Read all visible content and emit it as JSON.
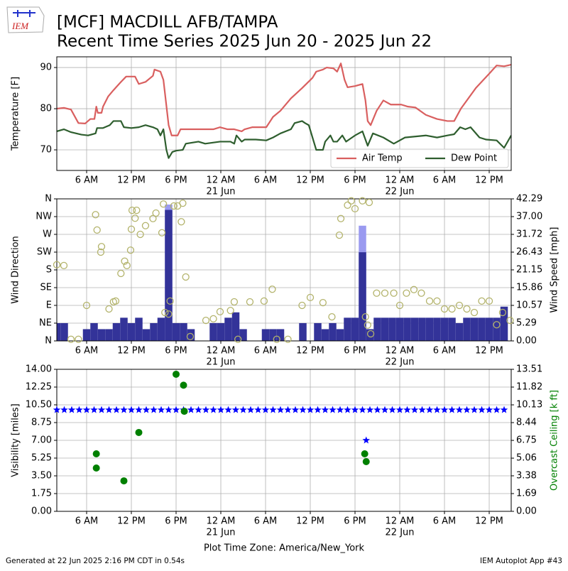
{
  "header": {
    "logo": "IEM",
    "title": "[MCF] MACDILL AFB/TAMPA",
    "subtitle": "Recent Time Series 2025 Jun 20 - 2025 Jun 22"
  },
  "footer": {
    "left": "Generated at 22 Jun 2025 2:16 PM CDT in 0.54s",
    "right": "IEM Autoplot App #43"
  },
  "chart_data": [
    {
      "type": "line",
      "ylabel": "Temperature [F]",
      "grid": true,
      "legend": "lower right",
      "xlim": [
        2,
        62.95
      ],
      "xticks": [
        {
          "value": 6,
          "label": "6 AM"
        },
        {
          "value": 12,
          "label": "12 PM"
        },
        {
          "value": 18,
          "label": "6 PM"
        },
        {
          "value": 24,
          "label": "12 AM",
          "sublabel": "21 Jun"
        },
        {
          "value": 30,
          "label": "6 AM"
        },
        {
          "value": 36,
          "label": "12 PM"
        },
        {
          "value": 42,
          "label": "6 PM"
        },
        {
          "value": 48,
          "label": "12 AM",
          "sublabel": "22 Jun"
        },
        {
          "value": 54,
          "label": "6 AM"
        },
        {
          "value": 60,
          "label": "12 PM"
        }
      ],
      "ylim": [
        65,
        92.6
      ],
      "yticks": [
        70,
        80,
        90
      ],
      "series": [
        {
          "name": "Air Temp",
          "color": "#d95f5f",
          "x": [
            2,
            2.95,
            3.9,
            4.9,
            5.8,
            6.5,
            7.05,
            7.3,
            7.5,
            8,
            8.2,
            8.9,
            9.6,
            10.6,
            11.3,
            12.5,
            13,
            13.9,
            14.9,
            15.1,
            15.9,
            16.3,
            17,
            17.4,
            18.2,
            18.6,
            19.6,
            21,
            23,
            23.9,
            24.9,
            25.8,
            26.8,
            27.2,
            28.2,
            29.6,
            30.1,
            31,
            32,
            33.4,
            34.9,
            36.3,
            36.8,
            37.7,
            38.2,
            39.1,
            39.6,
            40.1,
            40.6,
            41,
            42,
            43,
            43.4,
            43.7,
            44.1,
            44.9,
            45.8,
            46.8,
            48.2,
            49.1,
            50.1,
            51.5,
            53,
            54.4,
            55.3,
            56.2,
            58.2,
            60,
            61,
            62,
            62.95
          ],
          "values": [
            80,
            80.2,
            79.8,
            76.5,
            76.4,
            77.5,
            77.5,
            80.5,
            79,
            79,
            80.5,
            83,
            84.5,
            86.5,
            87.8,
            87.8,
            86,
            86.5,
            88,
            89.5,
            89,
            87,
            76,
            73.5,
            73.5,
            75,
            75,
            75,
            75,
            75.5,
            75,
            75,
            74.5,
            75,
            75.5,
            75.5,
            75.5,
            78,
            79.5,
            82.5,
            85,
            87.5,
            89,
            89.5,
            90,
            89.8,
            89,
            91,
            87,
            85.2,
            85.5,
            86,
            82,
            77,
            76,
            79.5,
            82,
            81,
            81,
            80.5,
            80.3,
            78.5,
            77.5,
            77,
            77,
            80,
            85,
            88.5,
            90.5,
            90.3,
            90.7
          ]
        },
        {
          "name": "Dew Point",
          "color": "#2e5e2e",
          "x": [
            2,
            2.95,
            3.9,
            5.3,
            6.2,
            7.2,
            7.4,
            8.2,
            9.1,
            9.6,
            10.6,
            11,
            12,
            13,
            13.9,
            14.9,
            15.5,
            15.9,
            16.3,
            16.7,
            17,
            17.5,
            18,
            18.9,
            19.3,
            21,
            21.9,
            23.9,
            25.3,
            25.8,
            26.1,
            26.8,
            27.2,
            28.7,
            30.1,
            31,
            32,
            33.4,
            33.9,
            34.9,
            35.3,
            35.8,
            36.8,
            37.7,
            38,
            38.7,
            39.1,
            39.6,
            40.3,
            40.8,
            41.2,
            42,
            43,
            43.2,
            43.7,
            44.4,
            45.8,
            47.2,
            48.7,
            51.5,
            53,
            54.4,
            55.3,
            56.1,
            56.8,
            57.5,
            58.7,
            59.6,
            61,
            62,
            62.95
          ],
          "values": [
            74.5,
            75,
            74.3,
            73.7,
            73.5,
            74,
            75.3,
            75.3,
            76,
            77,
            77,
            75.5,
            75.3,
            75.5,
            76,
            75.5,
            75,
            73.5,
            75,
            70,
            68,
            69.5,
            69.8,
            70,
            71.5,
            72,
            71.5,
            72,
            72,
            71.5,
            73.5,
            72,
            72.5,
            72.5,
            72.3,
            73,
            74,
            75,
            76.5,
            77,
            76.5,
            76,
            70,
            70,
            72,
            73.5,
            72,
            72,
            73.5,
            72,
            72.5,
            73.5,
            74.5,
            73.5,
            71,
            74,
            73,
            71.5,
            73,
            73.5,
            73,
            73.5,
            73.8,
            75.5,
            75,
            75.5,
            73,
            72.5,
            72.3,
            70.5,
            73.5
          ]
        }
      ]
    },
    {
      "type": "bar",
      "ylabel": "Wind Direction",
      "y2label": "Wind Speed [mph]",
      "grid": true,
      "xlim": [
        2,
        62.95
      ],
      "xticks": [
        {
          "value": 6,
          "label": "6 AM"
        },
        {
          "value": 12,
          "label": "12 PM"
        },
        {
          "value": 18,
          "label": "6 PM"
        },
        {
          "value": 24,
          "label": "12 AM",
          "sublabel": "21 Jun"
        },
        {
          "value": 30,
          "label": "6 AM"
        },
        {
          "value": 36,
          "label": "12 PM"
        },
        {
          "value": 42,
          "label": "6 PM"
        },
        {
          "value": 48,
          "label": "12 AM",
          "sublabel": "22 Jun"
        },
        {
          "value": 54,
          "label": "6 AM"
        },
        {
          "value": 60,
          "label": "12 PM"
        }
      ],
      "ylim": [
        0,
        360
      ],
      "yticks": [
        {
          "value": 0,
          "label": "N"
        },
        {
          "value": 45,
          "label": "NE"
        },
        {
          "value": 90,
          "label": "E"
        },
        {
          "value": 135,
          "label": "SE"
        },
        {
          "value": 180,
          "label": "S"
        },
        {
          "value": 225,
          "label": "SW"
        },
        {
          "value": 270,
          "label": "W"
        },
        {
          "value": 315,
          "label": "NW"
        },
        {
          "value": 360,
          "label": "N"
        }
      ],
      "y2lim": [
        0,
        42.29
      ],
      "y2ticks": [
        {
          "value": 0,
          "label": "0.00"
        },
        5.29,
        10.57,
        15.86,
        21.15,
        26.43,
        31.72,
        {
          "value": 37,
          "label": "37.00"
        },
        42.29
      ],
      "series": [
        {
          "type": "bar",
          "axis": "y2",
          "color": "#9a9af0",
          "x": [
            17,
            43
          ],
          "values": [
            40.6,
            34.3
          ]
        },
        {
          "type": "bar",
          "axis": "y2",
          "color": "#333399",
          "x": [
            2,
            3,
            4,
            5,
            6,
            7,
            8,
            9,
            10,
            11,
            12,
            13,
            14,
            15,
            16,
            17,
            18,
            19,
            20,
            21,
            22,
            23,
            24,
            25,
            26,
            27,
            28,
            29,
            30,
            31,
            32,
            33,
            34,
            35,
            36,
            37,
            38,
            39,
            40,
            41,
            42,
            43,
            44,
            45,
            46,
            47,
            48,
            49,
            50,
            51,
            52,
            53,
            54,
            55,
            56,
            57,
            58,
            59,
            60,
            61,
            62
          ],
          "values": [
            5.3,
            5.3,
            0,
            0,
            3.5,
            5.3,
            3.5,
            3.5,
            5.3,
            6.9,
            5.3,
            6.9,
            3.5,
            5.3,
            6.9,
            39,
            5.3,
            5.3,
            3.5,
            0,
            0,
            5.3,
            5.3,
            6.9,
            8.5,
            3.5,
            0,
            0,
            3.5,
            3.5,
            3.5,
            0,
            0,
            5.3,
            0,
            5.3,
            3.5,
            5.3,
            3.5,
            6.9,
            6.9,
            26.4,
            3.5,
            6.9,
            6.9,
            6.9,
            6.9,
            6.9,
            6.9,
            6.9,
            6.9,
            6.9,
            6.9,
            6.9,
            5.3,
            6.9,
            6.9,
            6.9,
            6.9,
            6.9,
            10.2
          ]
        },
        {
          "type": "scatter",
          "marker": "circle-open",
          "color": "#b3b36b",
          "x": [
            2,
            2.95,
            3.9,
            4.9,
            6,
            7.2,
            7.4,
            7.9,
            8,
            9,
            9.6,
            9.9,
            10.6,
            11.1,
            11.4,
            11.9,
            12,
            12.1,
            12.5,
            12.7,
            13.2,
            13.9,
            14.9,
            15.3,
            16.1,
            16.3,
            16.5,
            17,
            17.2,
            17.7,
            18.2,
            18.7,
            18.9,
            19.3,
            19.9,
            22,
            23,
            23.9,
            25.3,
            25.8,
            26.3,
            27.9,
            29.8,
            30.9,
            31.5,
            33,
            34.9,
            36,
            37.7,
            38.9,
            39.9,
            40.1,
            41,
            41.5,
            42,
            43,
            43.4,
            43.7,
            43.9,
            44.1,
            44.9,
            46,
            47.2,
            48,
            48.9,
            49.9,
            50.9,
            52,
            53,
            54,
            55,
            56,
            57,
            58,
            59,
            60,
            61,
            61.8,
            62.8
          ],
          "values": [
            193,
            191,
            4,
            4,
            90,
            320,
            281,
            225,
            239,
            81,
            99,
            101,
            171,
            202,
            191,
            230,
            283,
            331,
            311,
            331,
            270,
            292,
            310,
            324,
            274,
            347,
            72,
            68,
            101,
            342,
            342,
            302,
            349,
            162,
            11,
            52,
            56,
            74,
            77,
            99,
            4,
            99,
            101,
            131,
            4,
            4,
            90,
            110,
            97,
            61,
            268,
            310,
            344,
            355,
            335,
            355,
            61,
            40,
            351,
            18,
            121,
            121,
            121,
            90,
            121,
            130,
            121,
            101,
            101,
            81,
            81,
            90,
            81,
            72,
            101,
            101,
            41,
            72,
            52
          ]
        }
      ]
    },
    {
      "type": "scatter",
      "ylabel": "Visibility [miles]",
      "y2label": "Overcast Ceiling [k ft]",
      "y2color": "#008000",
      "xlabel": "Plot Time Zone: America/New_York",
      "grid": true,
      "xlim": [
        2,
        62.95
      ],
      "xticks": [
        {
          "value": 6,
          "label": "6 AM"
        },
        {
          "value": 12,
          "label": "12 PM"
        },
        {
          "value": 18,
          "label": "6 PM"
        },
        {
          "value": 24,
          "label": "12 AM",
          "sublabel": "21 Jun"
        },
        {
          "value": 30,
          "label": "6 AM"
        },
        {
          "value": 36,
          "label": "12 PM"
        },
        {
          "value": 42,
          "label": "6 PM"
        },
        {
          "value": 48,
          "label": "12 AM",
          "sublabel": "22 Jun"
        },
        {
          "value": 54,
          "label": "6 AM"
        },
        {
          "value": 60,
          "label": "12 PM"
        }
      ],
      "ylim": [
        0,
        14
      ],
      "yticks": [
        {
          "value": 0,
          "label": "0.00"
        },
        1.75,
        {
          "value": 3.5,
          "label": "3.50"
        },
        5.25,
        {
          "value": 7,
          "label": "7.00"
        },
        8.75,
        {
          "value": 10.5,
          "label": "10.50"
        },
        12.25,
        {
          "value": 14,
          "label": "14.00"
        }
      ],
      "y2lim": [
        0,
        13.51
      ],
      "y2ticks": [
        {
          "value": 0,
          "label": "0.00"
        },
        1.69,
        3.38,
        5.06,
        6.75,
        8.44,
        10.13,
        11.82,
        13.51
      ],
      "series": [
        {
          "type": "scatter",
          "marker": "star",
          "color": "#0000ff",
          "x": [
            2,
            3,
            4,
            5,
            6,
            7,
            8,
            9,
            10,
            11,
            12,
            13,
            14,
            15,
            16,
            17,
            18,
            19,
            20,
            21,
            22,
            23,
            24,
            25,
            26,
            27,
            28,
            29,
            30,
            31,
            32,
            33,
            34,
            35,
            36,
            37,
            38,
            39,
            40,
            41,
            42,
            43,
            44,
            45,
            46,
            47,
            48,
            49,
            50,
            51,
            52,
            53,
            54,
            55,
            56,
            57,
            58,
            59,
            60,
            61,
            62,
            43.5
          ],
          "values": [
            10,
            10,
            10,
            10,
            10,
            10,
            10,
            10,
            10,
            10,
            10,
            10,
            10,
            10,
            10,
            10,
            10,
            10,
            10,
            10,
            10,
            10,
            10,
            10,
            10,
            10,
            10,
            10,
            10,
            10,
            10,
            10,
            10,
            10,
            10,
            10,
            10,
            10,
            10,
            10,
            10,
            10,
            10,
            10,
            10,
            10,
            10,
            10,
            10,
            10,
            10,
            10,
            10,
            10,
            10,
            10,
            10,
            10,
            10,
            10,
            10,
            7
          ]
        },
        {
          "type": "scatter",
          "marker": "circle",
          "axis": "y2",
          "color": "#008000",
          "x": [
            7.3,
            7.3,
            11,
            13,
            18,
            19,
            19.1,
            43.3,
            43.5
          ],
          "values": [
            5.47,
            4.12,
            2.9,
            7.5,
            13.04,
            12,
            9.52,
            5.47,
            4.73
          ]
        }
      ]
    }
  ]
}
